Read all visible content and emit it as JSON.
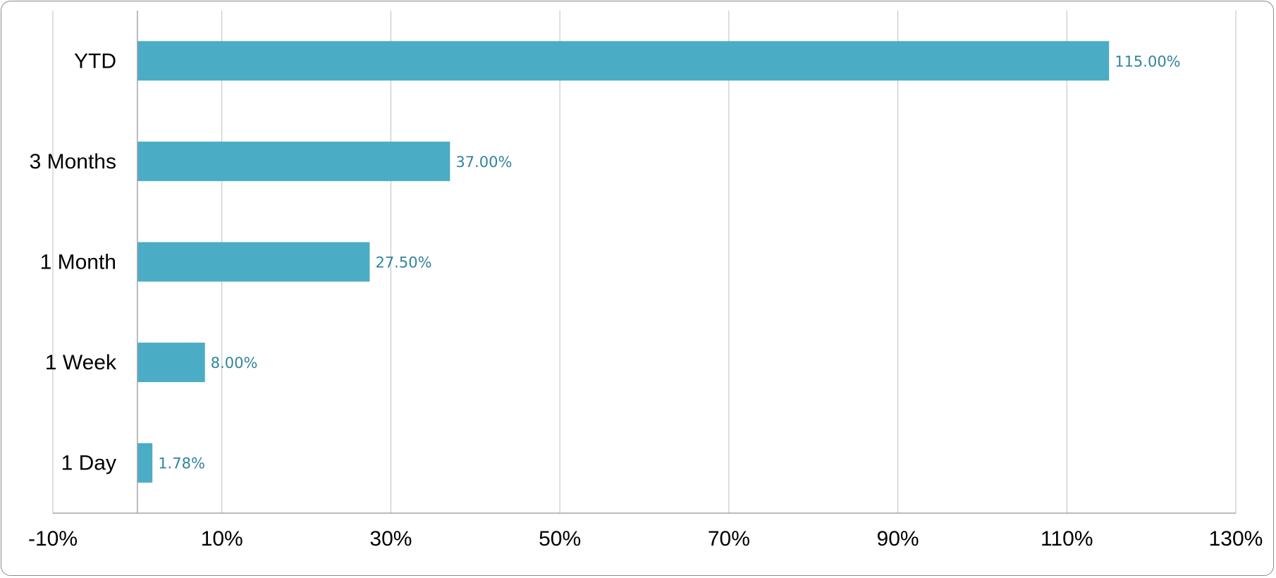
{
  "chart_data": {
    "type": "bar",
    "orientation": "horizontal",
    "title": "",
    "xlabel": "",
    "ylabel": "",
    "categories": [
      "YTD",
      "3 Months",
      "1 Month",
      "1 Week",
      "1 Day"
    ],
    "values": [
      115.0,
      37.0,
      27.5,
      8.0,
      1.78
    ],
    "data_labels": [
      "115.00%",
      "37.00%",
      "27.50%",
      "8.00%",
      "1.78%"
    ],
    "xlim": [
      -10,
      130
    ],
    "xticks": [
      -10,
      10,
      30,
      50,
      70,
      90,
      110,
      130
    ],
    "xtick_labels": [
      "-10%",
      "10%",
      "30%",
      "50%",
      "70%",
      "90%",
      "110%",
      "130%"
    ],
    "grid": true,
    "legend": "none",
    "colors": {
      "bar": "#4BACC6",
      "data_label": "#31859C",
      "grid": "#BFBFBF",
      "axis": "#A6A6A6"
    }
  }
}
